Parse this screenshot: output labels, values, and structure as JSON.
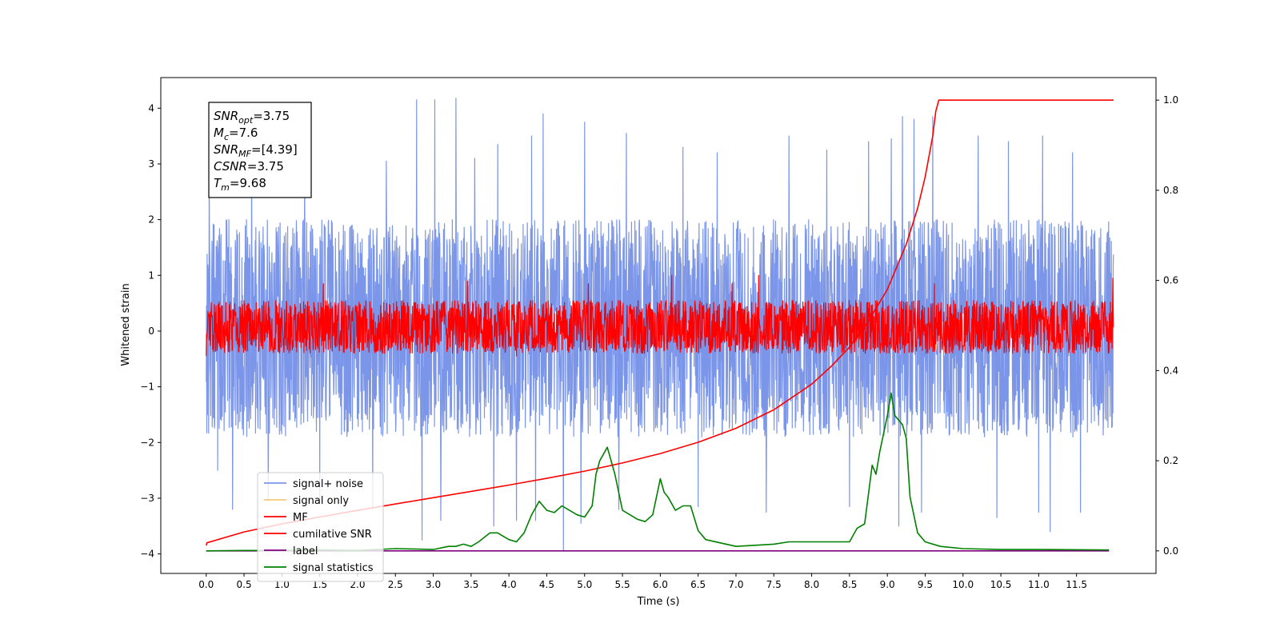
{
  "chart_data": {
    "type": "line",
    "xlabel": "Time (s)",
    "ylabel_left": "Whitened strain",
    "ylabel_right": "",
    "xlim": [
      -0.6,
      12.55
    ],
    "ylim_left": [
      -4.35,
      4.55
    ],
    "ylim_right": [
      -0.05,
      1.05
    ],
    "x_ticks": [
      0.0,
      0.5,
      1.0,
      1.5,
      2.0,
      2.5,
      3.0,
      3.5,
      4.0,
      4.5,
      5.0,
      5.5,
      6.0,
      6.5,
      7.0,
      7.5,
      8.0,
      8.5,
      9.0,
      9.5,
      10.0,
      10.5,
      11.0,
      11.5
    ],
    "x_tick_labels": [
      "0.0",
      "0.5",
      "1.0",
      "1.5",
      "2.0",
      "2.5",
      "3.0",
      "3.5",
      "4.0",
      "4.5",
      "5.0",
      "5.5",
      "6.0",
      "6.5",
      "7.0",
      "7.5",
      "8.0",
      "8.5",
      "9.0",
      "9.5",
      "10.0",
      "10.5",
      "11.0",
      "11.5"
    ],
    "y_left_ticks": [
      4,
      3,
      2,
      1,
      0,
      -1,
      -2,
      -3,
      -4
    ],
    "y_left_tick_labels": [
      "4",
      "3",
      "2",
      "1",
      "0",
      "−1",
      "−2",
      "−3",
      "−4"
    ],
    "y_right_ticks": [
      1.0,
      0.8,
      0.6,
      0.4,
      0.2,
      0.0
    ],
    "y_right_tick_labels": [
      "1.0",
      "0.8",
      "0.6",
      "0.4",
      "0.2",
      "0.0"
    ],
    "grid": false,
    "legend": {
      "position": "lower-left",
      "entries": [
        {
          "label": "signal+ noise",
          "color": "#7b95e8"
        },
        {
          "label": "signal only",
          "color": "#f5c97a"
        },
        {
          "label": "MF",
          "color": "#ff0000"
        },
        {
          "label": "cumilative SNR",
          "color": "#ff0000"
        },
        {
          "label": "label",
          "color": "#800080"
        },
        {
          "label": "signal statistics",
          "color": "#008000"
        }
      ]
    },
    "annotation": {
      "lines": [
        {
          "sym": "SNR",
          "sub": "opt",
          "value": "=3.75"
        },
        {
          "sym": "M",
          "sub": "c",
          "value": "=7.6"
        },
        {
          "sym": "SNR",
          "sub": "MF",
          "value": "=[4.39]"
        },
        {
          "sym": "CSNR",
          "sub": "",
          "value": "=3.75"
        },
        {
          "sym": "T",
          "sub": "m",
          "value": "=9.68"
        }
      ]
    },
    "series": [
      {
        "name": "signal+ noise",
        "axis": "left",
        "color": "#7b95e8",
        "x_range": [
          0.0,
          11.99
        ],
        "typical_range": [
          -1.9,
          2.0
        ],
        "spikes_up": [
          [
            0.04,
            2.9
          ],
          [
            0.6,
            3.1
          ],
          [
            1.3,
            2.9
          ],
          [
            2.38,
            3.05
          ],
          [
            2.78,
            4.15
          ],
          [
            3.02,
            4.15
          ],
          [
            3.3,
            4.18
          ],
          [
            3.55,
            3.1
          ],
          [
            3.85,
            3.35
          ],
          [
            4.3,
            3.5
          ],
          [
            4.45,
            3.9
          ],
          [
            5.0,
            3.75
          ],
          [
            5.55,
            3.55
          ],
          [
            6.3,
            3.3
          ],
          [
            6.75,
            3.2
          ],
          [
            7.7,
            3.5
          ],
          [
            8.2,
            3.25
          ],
          [
            8.75,
            3.4
          ],
          [
            9.05,
            3.45
          ],
          [
            9.2,
            3.85
          ],
          [
            9.35,
            3.8
          ],
          [
            9.6,
            3.85
          ],
          [
            10.2,
            3.5
          ],
          [
            10.6,
            3.4
          ],
          [
            11.05,
            3.5
          ],
          [
            11.45,
            3.2
          ]
        ],
        "spikes_down": [
          [
            0.15,
            -2.5
          ],
          [
            0.35,
            -3.2
          ],
          [
            0.82,
            -3.05
          ],
          [
            1.5,
            -3.1
          ],
          [
            2.2,
            -3.2
          ],
          [
            2.85,
            -3.75
          ],
          [
            3.1,
            -3.4
          ],
          [
            3.8,
            -3.5
          ],
          [
            4.1,
            -3.4
          ],
          [
            4.35,
            -3.4
          ],
          [
            4.72,
            -3.95
          ],
          [
            4.95,
            -3.45
          ],
          [
            5.45,
            -3.2
          ],
          [
            6.5,
            -3.15
          ],
          [
            7.4,
            -3.25
          ],
          [
            8.5,
            -3.15
          ],
          [
            9.15,
            -3.5
          ],
          [
            9.45,
            -3.25
          ],
          [
            10.45,
            -3.35
          ],
          [
            11.0,
            -3.25
          ],
          [
            11.15,
            -3.6
          ],
          [
            11.55,
            -3.25
          ]
        ]
      },
      {
        "name": "signal only",
        "axis": "left",
        "color": "#f5c97a",
        "note_values": [
          [
            9.6,
            0.0
          ],
          [
            9.64,
            -0.35
          ],
          [
            9.68,
            0.0
          ]
        ]
      },
      {
        "name": "MF",
        "axis": "left",
        "color": "#ff0000",
        "x_range": [
          0.0,
          11.99
        ],
        "typical_range": [
          -0.4,
          0.55
        ],
        "spikes_up": [
          [
            0.0,
            1.0
          ],
          [
            1.55,
            0.85
          ],
          [
            3.45,
            0.9
          ],
          [
            5.05,
            0.85
          ],
          [
            6.15,
            1.0
          ],
          [
            6.95,
            0.85
          ],
          [
            7.3,
            1.0
          ],
          [
            9.62,
            0.85
          ],
          [
            11.98,
            0.95
          ]
        ],
        "spikes_down": [
          [
            0.0,
            -0.45
          ],
          [
            4.1,
            -0.45
          ],
          [
            8.1,
            -0.4
          ]
        ]
      },
      {
        "name": "cumilative SNR",
        "axis": "right",
        "color": "#ff0000",
        "x": [
          0.0,
          0.01,
          0.5,
          1.0,
          1.5,
          2.0,
          2.5,
          3.0,
          3.5,
          4.0,
          4.5,
          5.0,
          5.5,
          6.0,
          6.5,
          7.0,
          7.5,
          8.0,
          8.25,
          8.5,
          8.75,
          9.0,
          9.25,
          9.4,
          9.5,
          9.6,
          9.64,
          9.68,
          11.99
        ],
        "y": [
          0.012,
          0.018,
          0.042,
          0.06,
          0.075,
          0.09,
          0.104,
          0.118,
          0.132,
          0.146,
          0.161,
          0.177,
          0.195,
          0.216,
          0.241,
          0.272,
          0.313,
          0.37,
          0.408,
          0.452,
          0.51,
          0.58,
          0.68,
          0.76,
          0.83,
          0.92,
          0.975,
          1.0,
          1.0
        ]
      },
      {
        "name": "label",
        "axis": "right",
        "color": "#800080",
        "x": [
          0.0,
          11.93
        ],
        "y": [
          0.0,
          0.0
        ]
      },
      {
        "name": "signal statistics",
        "axis": "right",
        "color": "#008000",
        "x": [
          0.0,
          0.5,
          1.0,
          1.5,
          2.0,
          2.5,
          2.8,
          3.0,
          3.2,
          3.3,
          3.4,
          3.5,
          3.6,
          3.75,
          3.85,
          3.95,
          4.0,
          4.1,
          4.2,
          4.3,
          4.4,
          4.5,
          4.6,
          4.7,
          4.8,
          4.9,
          5.0,
          5.1,
          5.15,
          5.2,
          5.3,
          5.35,
          5.4,
          5.5,
          5.6,
          5.7,
          5.8,
          5.9,
          6.0,
          6.05,
          6.1,
          6.2,
          6.3,
          6.4,
          6.5,
          6.6,
          7.0,
          7.5,
          7.7,
          8.0,
          8.5,
          8.6,
          8.7,
          8.8,
          8.85,
          8.9,
          9.0,
          9.05,
          9.1,
          9.2,
          9.25,
          9.3,
          9.4,
          9.5,
          9.7,
          10.0,
          10.5,
          11.0,
          11.93
        ],
        "y": [
          0.0,
          0.001,
          0.001,
          0.002,
          0.001,
          0.005,
          0.004,
          0.003,
          0.01,
          0.01,
          0.015,
          0.01,
          0.02,
          0.04,
          0.04,
          0.03,
          0.025,
          0.02,
          0.04,
          0.08,
          0.11,
          0.09,
          0.085,
          0.1,
          0.09,
          0.08,
          0.075,
          0.1,
          0.17,
          0.2,
          0.23,
          0.2,
          0.17,
          0.09,
          0.08,
          0.07,
          0.065,
          0.08,
          0.16,
          0.13,
          0.12,
          0.09,
          0.1,
          0.1,
          0.045,
          0.025,
          0.01,
          0.015,
          0.02,
          0.02,
          0.02,
          0.05,
          0.06,
          0.19,
          0.17,
          0.22,
          0.3,
          0.35,
          0.3,
          0.28,
          0.25,
          0.12,
          0.04,
          0.02,
          0.01,
          0.005,
          0.003,
          0.003,
          0.002
        ]
      }
    ]
  }
}
